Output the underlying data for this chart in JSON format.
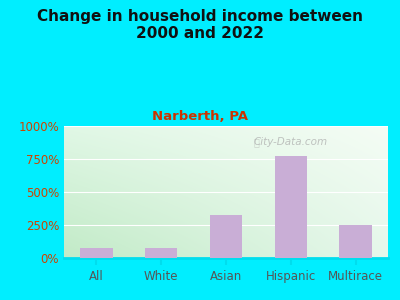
{
  "title": "Change in household income between\n2000 and 2022",
  "subtitle": "Narberth, PA",
  "categories": [
    "All",
    "White",
    "Asian",
    "Hispanic",
    "Multirace"
  ],
  "values": [
    75,
    75,
    325,
    775,
    250
  ],
  "bar_color": "#c9aed6",
  "title_fontsize": 11,
  "subtitle_fontsize": 9.5,
  "subtitle_color": "#cc3300",
  "title_color": "#111111",
  "tick_label_color": "#555555",
  "ytick_color": "#cc4400",
  "background_outer": "#00eeff",
  "ylim": [
    0,
    1000
  ],
  "yticks": [
    0,
    250,
    500,
    750,
    1000
  ],
  "ytick_labels": [
    "0%",
    "250%",
    "500%",
    "750%",
    "1000%"
  ],
  "watermark": "City-Data.com"
}
